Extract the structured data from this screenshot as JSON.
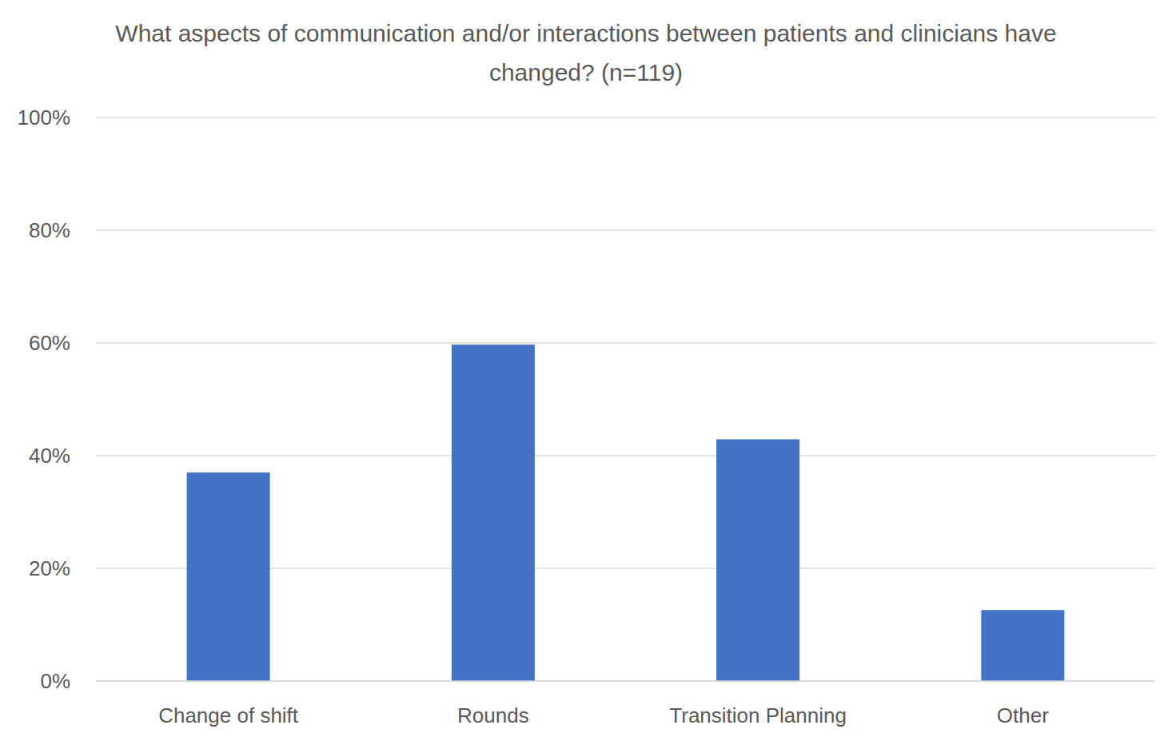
{
  "chart_data": {
    "type": "bar",
    "title": "What aspects of communication and/or interactions between patients and clinicians have changed? (n=119)",
    "categories": [
      "Change of shift",
      "Rounds",
      "Transition Planning",
      "Other"
    ],
    "values": [
      37.0,
      59.7,
      42.9,
      12.6
    ],
    "color": "#4472c4",
    "ylim": [
      0,
      100
    ],
    "yticks": [
      {
        "value": 0,
        "label": "0%"
      },
      {
        "value": 20,
        "label": "20%"
      },
      {
        "value": 40,
        "label": "40%"
      },
      {
        "value": 60,
        "label": "60%"
      },
      {
        "value": 80,
        "label": "80%"
      },
      {
        "value": 100,
        "label": "100%"
      }
    ],
    "grid": true
  }
}
